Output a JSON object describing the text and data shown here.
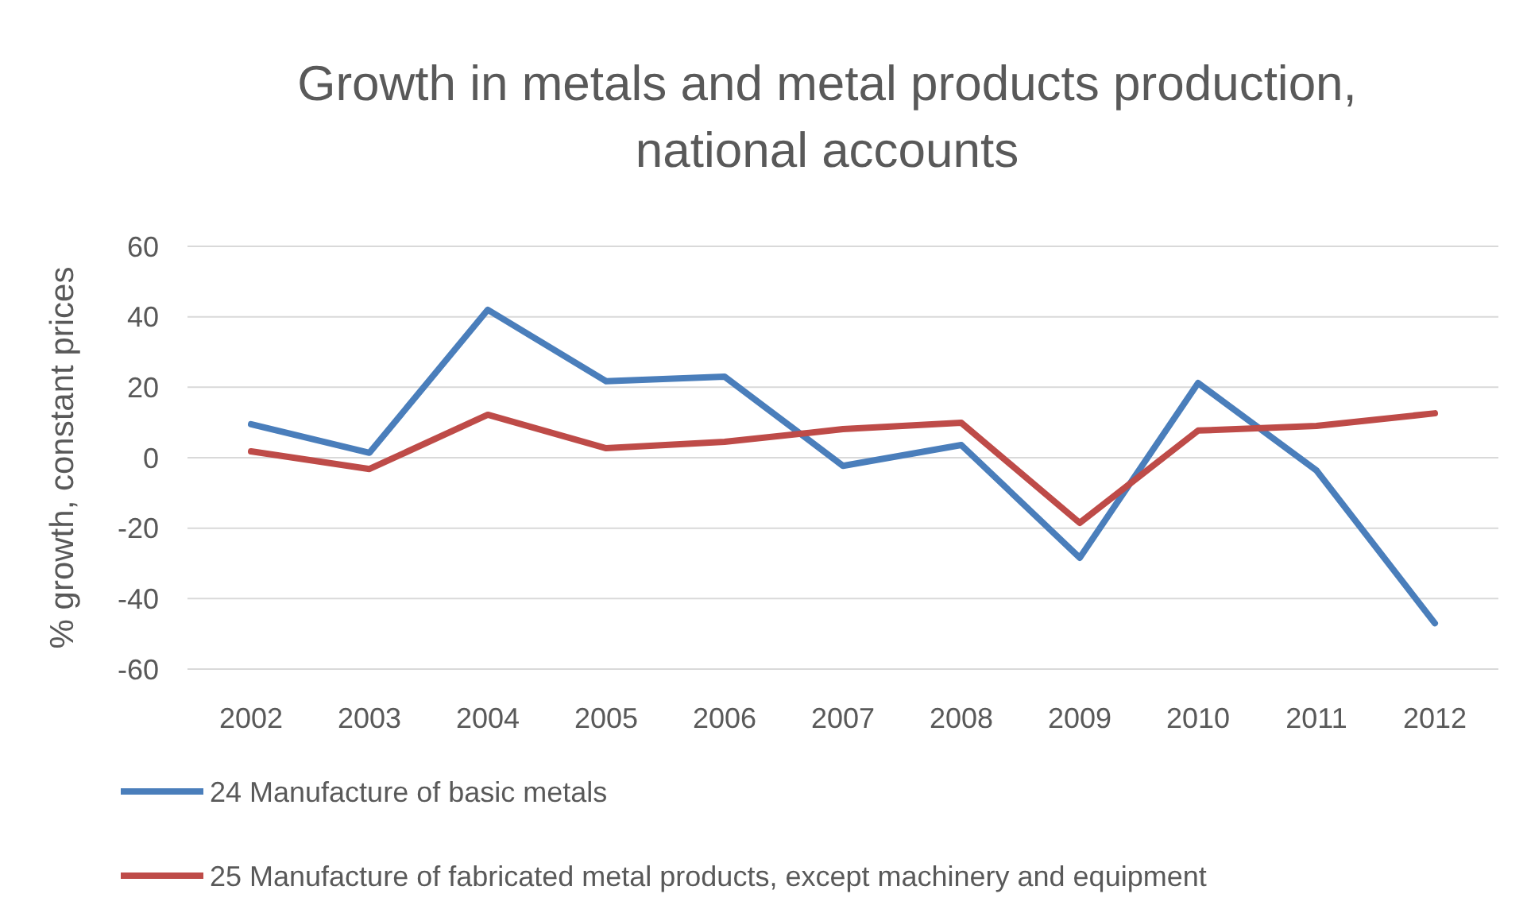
{
  "chart_data": {
    "type": "line",
    "title": "Growth in metals and metal products production,\nnational accounts",
    "ylabel": "% growth, constant prices",
    "categories": [
      "2002",
      "2003",
      "2004",
      "2005",
      "2006",
      "2007",
      "2008",
      "2009",
      "2010",
      "2011",
      "2012"
    ],
    "series": [
      {
        "name": "24 Manufacture of basic metals",
        "color": "#4a7ebb",
        "values": [
          9.5,
          1.4,
          42,
          21.7,
          23,
          -2.3,
          3.6,
          -28.4,
          21.2,
          -3.6,
          -47
        ]
      },
      {
        "name": "25 Manufacture of fabricated metal products, except machinery and equipment",
        "color": "#be4b48",
        "values": [
          1.8,
          -3.2,
          12.2,
          2.7,
          4.5,
          8.1,
          9.9,
          -18.5,
          7.7,
          9,
          12.6
        ]
      }
    ],
    "ylim": [
      -60,
      60
    ],
    "yticks": [
      -60,
      -40,
      -20,
      0,
      20,
      40,
      60
    ],
    "grid": "y",
    "legend": "bottom",
    "marker": "none",
    "line_style": "solid"
  }
}
